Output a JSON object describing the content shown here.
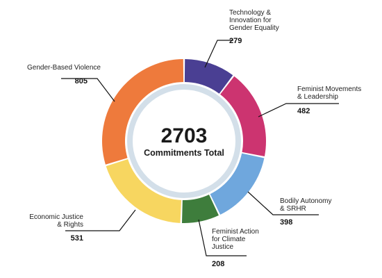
{
  "chart_data": {
    "type": "pie",
    "variant": "donut",
    "center_value": "2703",
    "center_label": "Commitments Total",
    "slices": [
      {
        "label": "Technology & Innovation for Gender Equality",
        "label_lines": [
          "Technology &",
          "Innovation for",
          "Gender Equality"
        ],
        "value": 279,
        "value_text": "279",
        "color": "#4a3f93"
      },
      {
        "label": "Feminist Movements & Leadership",
        "label_lines": [
          "Feminist Movements",
          "& Leadership"
        ],
        "value": 482,
        "value_text": "482",
        "color": "#cc3470"
      },
      {
        "label": "Bodily Autonomy & SRHR",
        "label_lines": [
          "Bodily Autonomy",
          "& SRHR"
        ],
        "value": 398,
        "value_text": "398",
        "color": "#6fa7dd"
      },
      {
        "label": "Feminist Action for Climate Justice",
        "label_lines": [
          "Feminist Action",
          "for Climate",
          "Justice"
        ],
        "value": 208,
        "value_text": "208",
        "color": "#3e7d3c"
      },
      {
        "label": "Economic Justice & Rights",
        "label_lines": [
          "Economic Justice",
          "& Rights"
        ],
        "value": 531,
        "value_text": "531",
        "color": "#f7d660"
      },
      {
        "label": "Gender-Based Violence",
        "label_lines": [
          "Gender-Based Violence"
        ],
        "value": 805,
        "value_text": "805",
        "color": "#ee7a3c"
      }
    ],
    "ring_color": "#d3dfe9"
  }
}
